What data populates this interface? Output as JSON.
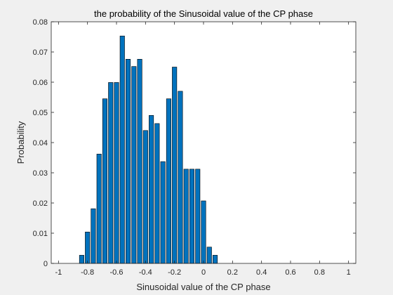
{
  "chart_data": {
    "type": "bar",
    "title": "the probability of the Sinusoidal value of the CP phase",
    "xlabel": "Sinusoidal value of the CP phase",
    "ylabel": "Probability",
    "xlim": [
      -1.05,
      1.05
    ],
    "ylim": [
      0,
      0.08
    ],
    "xticks": [
      -1,
      -0.8,
      -0.6,
      -0.4,
      -0.2,
      0,
      0.2,
      0.4,
      0.6,
      0.8,
      1
    ],
    "xtick_labels": [
      "-1",
      "-0.8",
      "-0.6",
      "-0.4",
      "-0.2",
      "0",
      "0.2",
      "0.4",
      "0.6",
      "0.8",
      "1"
    ],
    "yticks": [
      0,
      0.01,
      0.02,
      0.03,
      0.04,
      0.05,
      0.06,
      0.07,
      0.08
    ],
    "ytick_labels": [
      "0",
      "0.01",
      "0.02",
      "0.03",
      "0.04",
      "0.05",
      "0.06",
      "0.07",
      "0.08"
    ],
    "bar_width": 0.04,
    "x": [
      -0.84,
      -0.8,
      -0.76,
      -0.72,
      -0.68,
      -0.64,
      -0.6,
      -0.56,
      -0.52,
      -0.48,
      -0.44,
      -0.4,
      -0.36,
      -0.32,
      -0.28,
      -0.24,
      -0.2,
      -0.16,
      -0.12,
      -0.08,
      -0.04,
      0.0,
      0.04,
      0.08
    ],
    "values": [
      0.0027,
      0.0104,
      0.0181,
      0.0362,
      0.0545,
      0.0599,
      0.0599,
      0.0753,
      0.0676,
      0.0652,
      0.0676,
      0.044,
      0.049,
      0.0463,
      0.0337,
      0.0545,
      0.065,
      0.057,
      0.0312,
      0.0312,
      0.0312,
      0.0207,
      0.0054,
      0.0027
    ],
    "bar_color": "#0072BD",
    "edge_color": "#000000",
    "grid": false
  }
}
